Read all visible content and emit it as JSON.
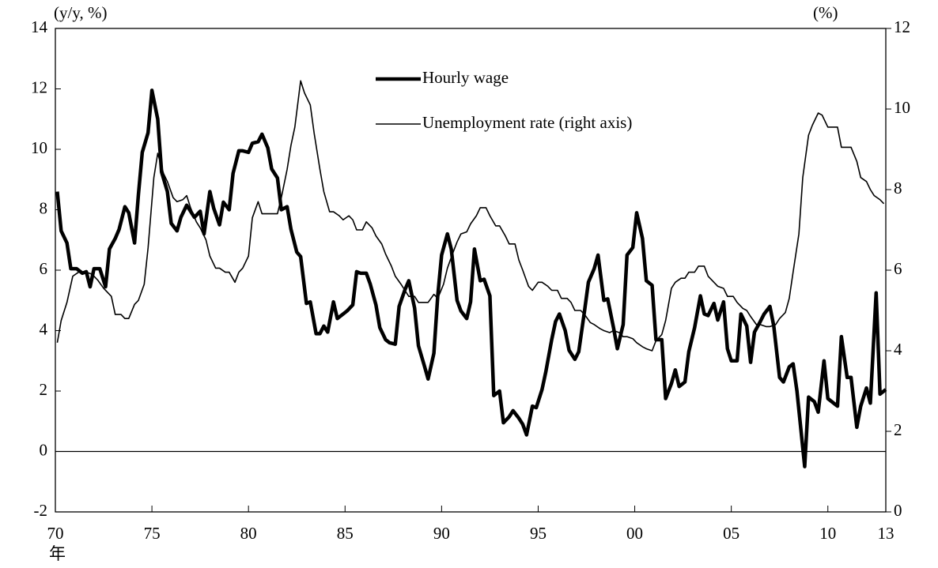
{
  "chart_data": {
    "type": "line",
    "ylabel": "(y/y, %)",
    "y2label": "(%)",
    "x_unit": "年",
    "xlim": [
      1970,
      2013
    ],
    "xticks": [
      {
        "value": 1970,
        "label": "70"
      },
      {
        "value": 1975,
        "label": "75"
      },
      {
        "value": 1980,
        "label": "80"
      },
      {
        "value": 1985,
        "label": "85"
      },
      {
        "value": 1990,
        "label": "90"
      },
      {
        "value": 1995,
        "label": "95"
      },
      {
        "value": 2000,
        "label": "00"
      },
      {
        "value": 2005,
        "label": "05"
      },
      {
        "value": 2010,
        "label": "10"
      },
      {
        "value": 2013,
        "label": "13"
      }
    ],
    "ylim": [
      -2,
      14
    ],
    "yticks": [
      -2,
      0,
      2,
      4,
      6,
      8,
      10,
      12,
      14
    ],
    "y2lim": [
      0,
      12
    ],
    "y2ticks": [
      0,
      2,
      4,
      6,
      8,
      10,
      12
    ],
    "reference_line": 0,
    "legend": "upper center",
    "grid": false,
    "series": [
      {
        "name": "Hourly wage",
        "color": "#000000",
        "line_width": 4.5,
        "x": [
          1970.1,
          1970.3,
          1970.6,
          1970.8,
          1971.1,
          1971.4,
          1971.6,
          1971.8,
          1972.0,
          1972.3,
          1972.6,
          1972.8,
          1973.1,
          1973.3,
          1973.6,
          1973.8,
          1974.1,
          1974.3,
          1974.5,
          1974.8,
          1975.0,
          1975.3,
          1975.5,
          1975.8,
          1976.0,
          1976.3,
          1976.5,
          1976.8,
          1977.0,
          1977.2,
          1977.5,
          1977.7,
          1978.0,
          1978.2,
          1978.5,
          1978.7,
          1979.0,
          1979.2,
          1979.5,
          1979.7,
          1980.0,
          1980.2,
          1980.5,
          1980.7,
          1981.0,
          1981.2,
          1981.5,
          1981.7,
          1982.0,
          1982.2,
          1982.5,
          1982.7,
          1983.0,
          1983.2,
          1983.5,
          1983.7,
          1983.9,
          1984.1,
          1984.4,
          1984.6,
          1984.9,
          1985.1,
          1985.4,
          1985.6,
          1985.8,
          1986.1,
          1986.3,
          1986.6,
          1986.8,
          1987.1,
          1987.3,
          1987.6,
          1987.8,
          1988.1,
          1988.3,
          1988.6,
          1988.8,
          1989.1,
          1989.3,
          1989.6,
          1989.8,
          1990.0,
          1990.3,
          1990.5,
          1990.8,
          1991.0,
          1991.3,
          1991.5,
          1991.7,
          1992.0,
          1992.2,
          1992.5,
          1992.7,
          1993.0,
          1993.2,
          1993.5,
          1993.7,
          1994.0,
          1994.2,
          1994.4,
          1994.7,
          1994.9,
          1995.2,
          1995.4,
          1995.7,
          1995.9,
          1996.1,
          1996.4,
          1996.6,
          1996.9,
          1997.1,
          1997.4,
          1997.6,
          1997.9,
          1998.1,
          1998.4,
          1998.6,
          1998.9,
          1999.1,
          1999.4,
          1999.6,
          1999.9,
          2000.1,
          2000.4,
          2000.6,
          2000.9,
          2001.1,
          2001.4,
          2001.6,
          2001.9,
          2002.1,
          2002.3,
          2002.6,
          2002.8,
          2003.1,
          2003.4,
          2003.6,
          2003.8,
          2004.1,
          2004.3,
          2004.6,
          2004.8,
          2005.0,
          2005.3,
          2005.5,
          2005.8,
          2006.0,
          2006.2,
          2006.5,
          2006.7,
          2007.0,
          2007.2,
          2007.5,
          2007.7,
          2008.0,
          2008.2,
          2008.4,
          2008.8,
          2009.0,
          2009.3,
          2009.5,
          2009.8,
          2010.0,
          2010.3,
          2010.5,
          2010.7,
          2011.0,
          2011.2,
          2011.5,
          2011.7,
          2012.0,
          2012.2,
          2012.5,
          2012.7,
          2013.0
        ],
        "values": [
          8.6,
          7.3,
          6.9,
          6.05,
          6.05,
          5.9,
          5.95,
          5.45,
          6.05,
          6.05,
          5.45,
          6.7,
          7.05,
          7.35,
          8.1,
          7.9,
          6.9,
          8.5,
          9.9,
          10.55,
          11.95,
          11.0,
          9.25,
          8.6,
          7.55,
          7.3,
          7.75,
          8.15,
          7.95,
          7.75,
          7.95,
          7.2,
          8.6,
          8.05,
          7.5,
          8.25,
          8.0,
          9.2,
          9.95,
          9.95,
          9.9,
          10.2,
          10.25,
          10.5,
          10.05,
          9.35,
          9.05,
          8.0,
          8.1,
          7.35,
          6.6,
          6.45,
          4.9,
          4.95,
          3.9,
          3.9,
          4.15,
          3.95,
          4.95,
          4.4,
          4.55,
          4.65,
          4.85,
          5.95,
          5.9,
          5.9,
          5.55,
          4.85,
          4.1,
          3.7,
          3.6,
          3.55,
          4.8,
          5.35,
          5.65,
          4.75,
          3.5,
          2.85,
          2.4,
          3.25,
          5.15,
          6.5,
          7.2,
          6.7,
          5.0,
          4.65,
          4.4,
          4.95,
          6.7,
          5.65,
          5.7,
          5.15,
          1.85,
          2.0,
          0.95,
          1.15,
          1.35,
          1.1,
          0.9,
          0.55,
          1.5,
          1.45,
          2.05,
          2.65,
          3.7,
          4.3,
          4.55,
          4.0,
          3.35,
          3.05,
          3.3,
          4.65,
          5.6,
          6.05,
          6.5,
          5.0,
          5.05,
          4.1,
          3.4,
          4.2,
          6.5,
          6.75,
          7.9,
          7.05,
          5.65,
          5.5,
          3.7,
          3.7,
          1.75,
          2.25,
          2.7,
          2.15,
          2.3,
          3.3,
          4.1,
          5.15,
          4.55,
          4.5,
          4.9,
          4.35,
          4.95,
          3.4,
          3.0,
          3.0,
          4.55,
          4.15,
          2.95,
          3.95,
          4.3,
          4.55,
          4.8,
          4.15,
          2.45,
          2.3,
          2.8,
          2.9,
          2.0,
          -0.5,
          1.8,
          1.65,
          1.3,
          3.0,
          1.75,
          1.6,
          1.5,
          3.8,
          2.45,
          2.45,
          0.8,
          1.5,
          2.1,
          1.6,
          5.25,
          1.9,
          2.05
        ]
      },
      {
        "name": "Unemployment rate (right axis)",
        "color": "#000000",
        "line_width": 1.6,
        "axis": "y2",
        "x": [
          1970.1,
          1970.3,
          1970.6,
          1970.9,
          1971.2,
          1971.6,
          1971.9,
          1972.2,
          1972.5,
          1972.9,
          1973.1,
          1973.4,
          1973.6,
          1973.8,
          1974.1,
          1974.3,
          1974.6,
          1974.8,
          1975.1,
          1975.3,
          1975.6,
          1975.8,
          1976.1,
          1976.3,
          1976.6,
          1976.8,
          1977.0,
          1977.3,
          1977.5,
          1977.8,
          1978.0,
          1978.3,
          1978.5,
          1978.8,
          1979.0,
          1979.3,
          1979.5,
          1979.7,
          1980.0,
          1980.2,
          1980.5,
          1980.7,
          1981.0,
          1981.5,
          1981.7,
          1982.0,
          1982.2,
          1982.4,
          1982.7,
          1982.9,
          1983.2,
          1983.4,
          1983.7,
          1983.9,
          1984.2,
          1984.4,
          1984.7,
          1984.9,
          1985.2,
          1985.4,
          1985.6,
          1985.9,
          1986.1,
          1986.4,
          1986.6,
          1986.9,
          1987.1,
          1987.4,
          1987.6,
          1987.9,
          1988.1,
          1988.3,
          1988.6,
          1988.8,
          1989.1,
          1989.3,
          1989.6,
          1989.8,
          1990.1,
          1990.3,
          1990.6,
          1990.8,
          1991.0,
          1991.3,
          1991.5,
          1991.8,
          1992.0,
          1992.3,
          1992.5,
          1992.8,
          1993.0,
          1993.3,
          1993.5,
          1993.8,
          1994.0,
          1994.2,
          1994.5,
          1994.7,
          1995.0,
          1995.2,
          1995.5,
          1995.7,
          1996.0,
          1996.2,
          1996.5,
          1996.7,
          1996.9,
          1997.2,
          1997.4,
          1997.7,
          1997.9,
          1998.2,
          1998.4,
          1998.7,
          1998.9,
          1999.2,
          1999.4,
          1999.6,
          1999.9,
          2000.1,
          2000.4,
          2000.6,
          2000.9,
          2001.1,
          2001.4,
          2001.6,
          2001.9,
          2002.1,
          2002.4,
          2002.6,
          2002.8,
          2003.1,
          2003.3,
          2003.6,
          2003.8,
          2004.1,
          2004.3,
          2004.6,
          2004.8,
          2005.1,
          2005.3,
          2005.6,
          2005.8,
          2006.0,
          2006.3,
          2006.5,
          2006.8,
          2007.0,
          2007.3,
          2007.5,
          2007.8,
          2008.0,
          2008.2,
          2008.5,
          2008.7,
          2009.0,
          2009.2,
          2009.5,
          2009.7,
          2010.0,
          2010.2,
          2010.5,
          2010.7,
          2011.0,
          2011.2,
          2011.5,
          2011.7,
          2012.0,
          2012.2,
          2012.4,
          2012.7,
          2012.9
        ],
        "values": [
          4.2,
          4.75,
          5.2,
          5.85,
          5.95,
          5.95,
          5.9,
          5.75,
          5.55,
          5.35,
          4.9,
          4.9,
          4.8,
          4.8,
          5.15,
          5.25,
          5.65,
          6.55,
          8.3,
          8.9,
          8.4,
          8.2,
          7.8,
          7.7,
          7.75,
          7.85,
          7.55,
          7.2,
          7.05,
          6.75,
          6.35,
          6.05,
          6.05,
          5.95,
          5.95,
          5.7,
          5.95,
          6.05,
          6.35,
          7.3,
          7.7,
          7.4,
          7.4,
          7.4,
          7.8,
          8.5,
          9.1,
          9.55,
          10.7,
          10.4,
          10.1,
          9.4,
          8.5,
          7.95,
          7.45,
          7.45,
          7.35,
          7.25,
          7.35,
          7.25,
          7.0,
          7.0,
          7.2,
          7.05,
          6.85,
          6.65,
          6.4,
          6.1,
          5.85,
          5.65,
          5.5,
          5.35,
          5.35,
          5.2,
          5.2,
          5.2,
          5.4,
          5.3,
          5.65,
          6.05,
          6.45,
          6.7,
          6.9,
          6.95,
          7.15,
          7.35,
          7.55,
          7.55,
          7.35,
          7.1,
          7.1,
          6.85,
          6.65,
          6.65,
          6.25,
          6.0,
          5.6,
          5.5,
          5.7,
          5.7,
          5.6,
          5.5,
          5.5,
          5.3,
          5.3,
          5.2,
          5.0,
          5.0,
          4.9,
          4.7,
          4.65,
          4.55,
          4.5,
          4.45,
          4.5,
          4.45,
          4.35,
          4.35,
          4.3,
          4.2,
          4.1,
          4.05,
          4.0,
          4.25,
          4.4,
          4.75,
          5.55,
          5.7,
          5.8,
          5.8,
          5.95,
          5.95,
          6.1,
          6.1,
          5.85,
          5.7,
          5.6,
          5.55,
          5.35,
          5.35,
          5.2,
          5.05,
          5.0,
          4.85,
          4.65,
          4.65,
          4.6,
          4.6,
          4.65,
          4.8,
          4.95,
          5.3,
          5.95,
          6.9,
          8.3,
          9.35,
          9.6,
          9.9,
          9.85,
          9.55,
          9.55,
          9.55,
          9.05,
          9.05,
          9.05,
          8.7,
          8.3,
          8.2,
          8.0,
          7.85,
          7.75,
          7.65
        ]
      }
    ]
  }
}
